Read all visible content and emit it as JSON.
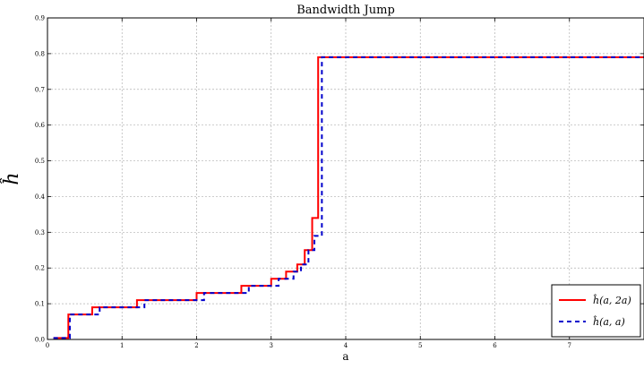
{
  "chart_data": {
    "type": "line",
    "title": "Bandwidth Jump",
    "xlabel": "a",
    "ylabel": "ĥ",
    "xlim": [
      0,
      8
    ],
    "ylim": [
      0,
      0.9
    ],
    "grid": true,
    "legend_placement": "bottom-right",
    "x_ticks": [
      "0",
      "1",
      "2",
      "3",
      "4",
      "5",
      "6",
      "7"
    ],
    "y_ticks": [
      "0.0",
      "0.1",
      "0.2",
      "0.3",
      "0.4",
      "0.5",
      "0.6",
      "0.7",
      "0.8",
      "0.9"
    ],
    "series": [
      {
        "name": "ĥ(a, 2a)",
        "color": "#ff0000",
        "style": "solid",
        "step": "post",
        "x": [
          0.08,
          0.28,
          0.6,
          1.2,
          2.0,
          2.6,
          3.0,
          3.2,
          3.35,
          3.45,
          3.55,
          3.63,
          3.7,
          8.0
        ],
        "y": [
          0.004,
          0.07,
          0.09,
          0.11,
          0.13,
          0.15,
          0.17,
          0.19,
          0.21,
          0.25,
          0.34,
          0.79,
          0.79,
          0.79
        ]
      },
      {
        "name": "ĥ(a, a)",
        "color": "#0000cc",
        "style": "dashed",
        "step": "post",
        "x": [
          0.08,
          0.3,
          0.7,
          1.3,
          2.1,
          2.7,
          3.1,
          3.3,
          3.4,
          3.5,
          3.58,
          3.68,
          3.72,
          8.0
        ],
        "y": [
          0.004,
          0.07,
          0.09,
          0.11,
          0.13,
          0.15,
          0.17,
          0.19,
          0.21,
          0.25,
          0.29,
          0.79,
          0.79,
          0.79
        ]
      }
    ]
  }
}
